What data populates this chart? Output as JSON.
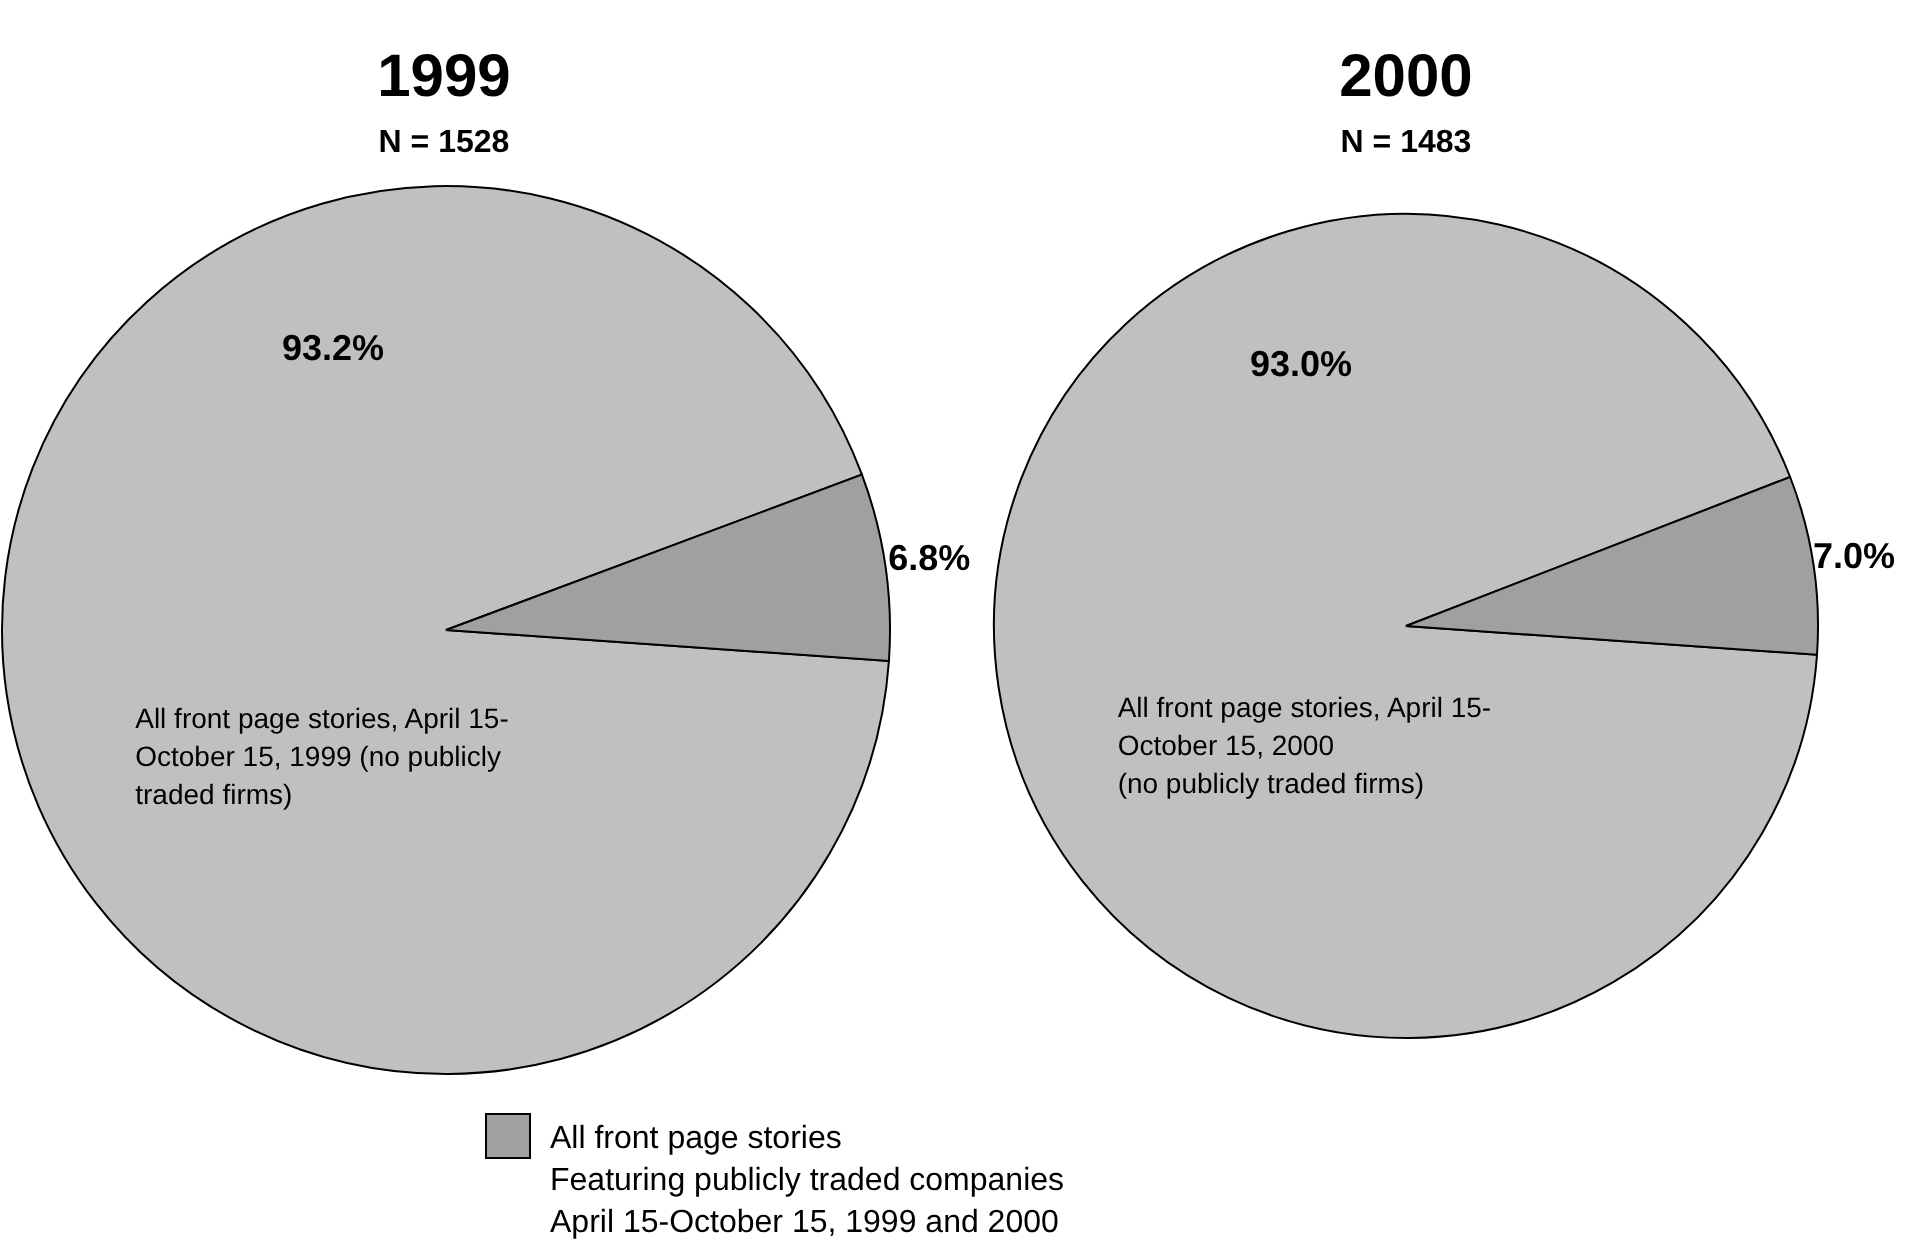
{
  "chart_data": [
    {
      "type": "pie",
      "title": "1999",
      "subtitle": "N = 1528",
      "categories": [
        "All front page stories, April 15-\nOctober 15, 1999 (no publicly\ntraded firms)",
        "All front page stories\nFeaturing publicly traded companies\nApril 15-October 15, 1999 and 2000"
      ],
      "values": [
        93.2,
        6.8
      ],
      "colors": [
        "#c0c0c0",
        "#a0a0a0"
      ],
      "value_labels": [
        "93.2%",
        "6.8%"
      ],
      "legend": "bottom"
    },
    {
      "type": "pie",
      "title": "2000",
      "subtitle": "N = 1483",
      "categories": [
        "All front page stories, April 15-\nOctober 15, 2000\n(no publicly traded firms)",
        null
      ],
      "values": [
        93.0,
        7.0
      ],
      "colors": [
        "#c0c0c0",
        "#a0a0a0"
      ],
      "value_labels": [
        "93.0%",
        "7.0%"
      ]
    }
  ]
}
